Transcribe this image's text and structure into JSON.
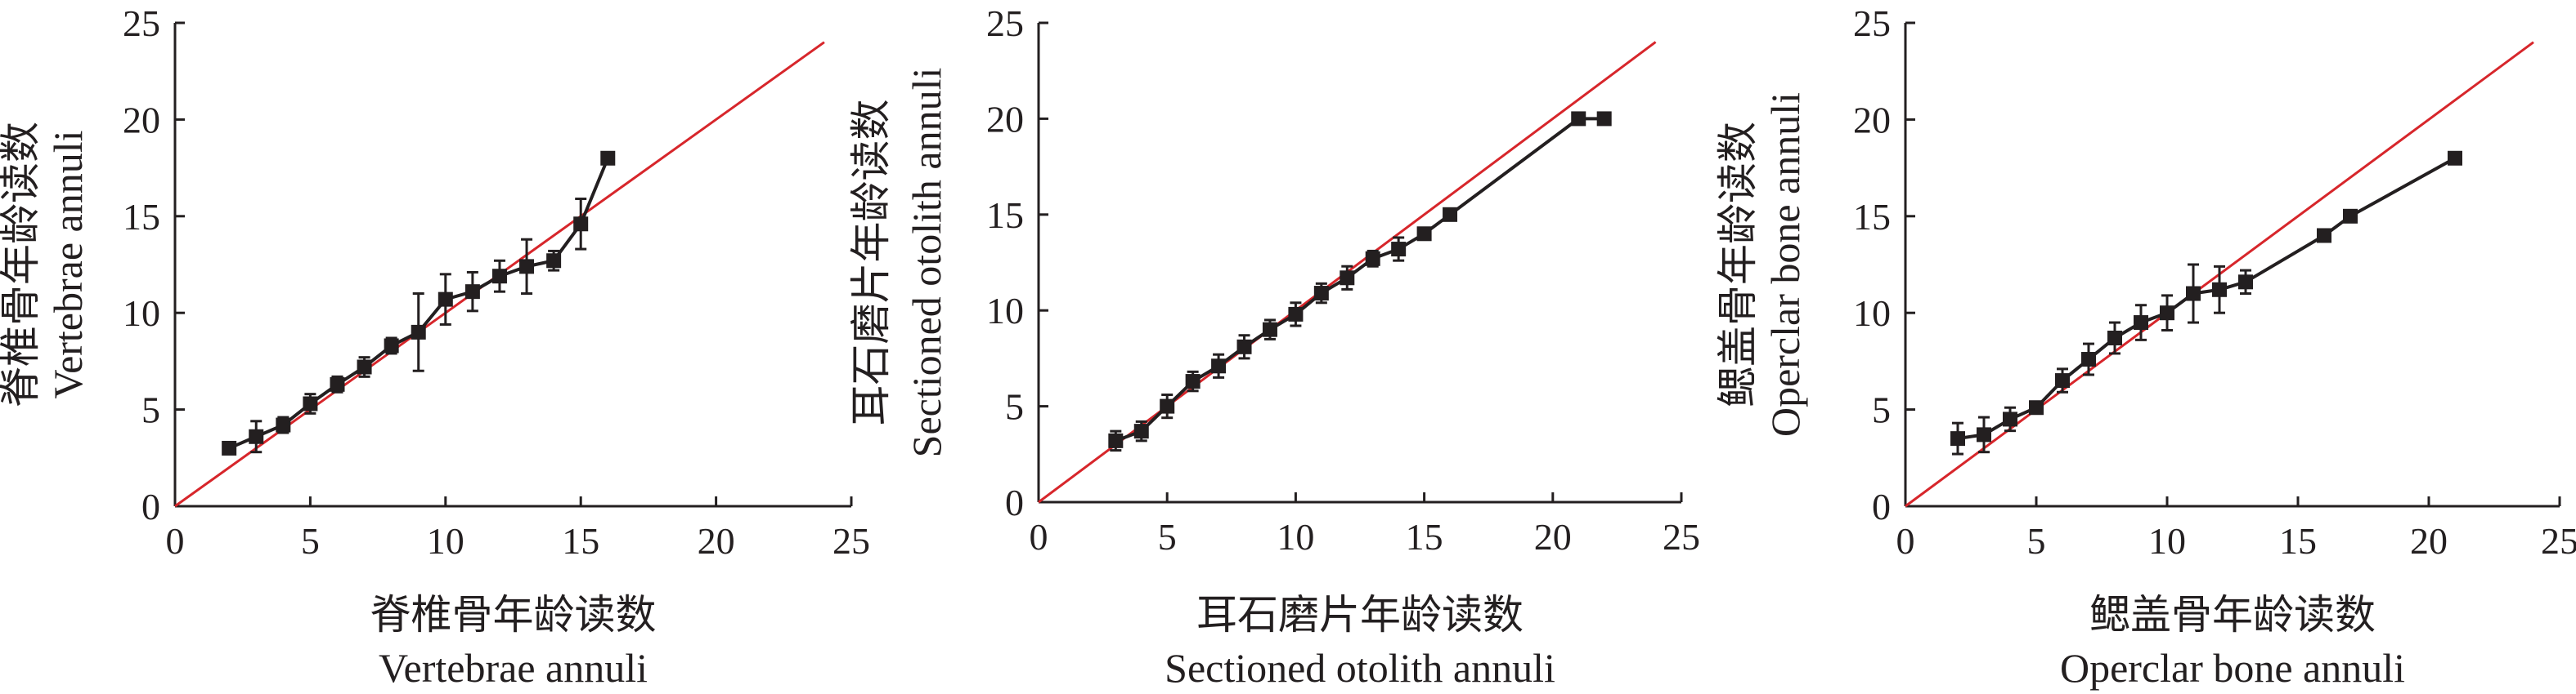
{
  "chart_data": [
    {
      "type": "scatter",
      "xlabel": "脊椎骨年龄读数",
      "xlabel_en": "Vertebrae annuli",
      "ylabel": "脊椎骨年龄读数",
      "ylabel_en": "Vertebrae annuli",
      "xlim": [
        0,
        25
      ],
      "ylim": [
        0,
        25
      ],
      "xticks": [
        0,
        5,
        10,
        15,
        20,
        25
      ],
      "yticks": [
        0,
        5,
        10,
        15,
        20,
        25
      ],
      "grid": false,
      "colors": {
        "series": "#231f20",
        "reference": "#d7262b"
      },
      "reference_line": {
        "x": [
          0,
          24
        ],
        "y": [
          0,
          24
        ]
      },
      "series": [
        {
          "x": [
            2,
            3,
            4,
            5,
            6,
            7,
            8,
            9,
            10,
            11,
            12,
            13,
            14,
            15,
            16
          ],
          "y": [
            3.0,
            3.6,
            4.2,
            5.3,
            6.3,
            7.2,
            8.3,
            9.0,
            10.7,
            11.1,
            11.9,
            12.4,
            12.7,
            14.6,
            18.0
          ],
          "err": [
            0,
            0.8,
            0.4,
            0.5,
            0.4,
            0.5,
            0.4,
            2.0,
            1.3,
            1.0,
            0.8,
            1.4,
            0.5,
            1.3,
            0
          ]
        }
      ]
    },
    {
      "type": "scatter",
      "xlabel": "耳石磨片年龄读数",
      "xlabel_en": "Sectioned otolith annuli",
      "ylabel": "耳石磨片年龄读数",
      "ylabel_en": "Sectioned otolith annuli",
      "xlim": [
        0,
        25
      ],
      "ylim": [
        0,
        25
      ],
      "xticks": [
        0,
        5,
        10,
        15,
        20,
        25
      ],
      "yticks": [
        0,
        5,
        10,
        15,
        20,
        25
      ],
      "grid": false,
      "colors": {
        "series": "#231f20",
        "reference": "#d7262b"
      },
      "reference_line": {
        "x": [
          0,
          24
        ],
        "y": [
          0,
          24
        ]
      },
      "series": [
        {
          "x": [
            3,
            4,
            5,
            6,
            7,
            8,
            9,
            10,
            11,
            12,
            13,
            14,
            15,
            16,
            21,
            22
          ],
          "y": [
            3.2,
            3.7,
            5.0,
            6.3,
            7.1,
            8.1,
            9.0,
            9.8,
            10.9,
            11.7,
            12.7,
            13.2,
            14.0,
            15.0,
            20.0,
            20.0
          ],
          "err": [
            0.5,
            0.5,
            0.6,
            0.5,
            0.6,
            0.6,
            0.5,
            0.6,
            0.5,
            0.6,
            0.4,
            0.6,
            0,
            0,
            0,
            0
          ]
        }
      ]
    },
    {
      "type": "scatter",
      "xlabel": "鳃盖骨年龄读数",
      "xlabel_en": "Operclar bone annuli",
      "ylabel": "鳃盖骨年龄读数",
      "ylabel_en": "Operclar bone annuli",
      "xlim": [
        0,
        25
      ],
      "ylim": [
        0,
        25
      ],
      "xticks": [
        0,
        5,
        10,
        15,
        20,
        25
      ],
      "yticks": [
        0,
        5,
        10,
        15,
        20,
        25
      ],
      "grid": false,
      "colors": {
        "series": "#231f20",
        "reference": "#d7262b"
      },
      "reference_line": {
        "x": [
          0,
          24
        ],
        "y": [
          0,
          24
        ]
      },
      "series": [
        {
          "x": [
            2,
            3,
            4,
            5,
            6,
            7,
            8,
            9,
            10,
            11,
            12,
            13,
            16,
            17,
            21
          ],
          "y": [
            3.5,
            3.7,
            4.5,
            5.1,
            6.5,
            7.6,
            8.7,
            9.5,
            10.0,
            11.0,
            11.2,
            11.6,
            14.0,
            15.0,
            18.0
          ],
          "err": [
            0.8,
            0.9,
            0.6,
            0.3,
            0.6,
            0.8,
            0.8,
            0.9,
            0.9,
            1.5,
            1.2,
            0.6,
            0,
            0,
            0
          ]
        }
      ]
    }
  ]
}
